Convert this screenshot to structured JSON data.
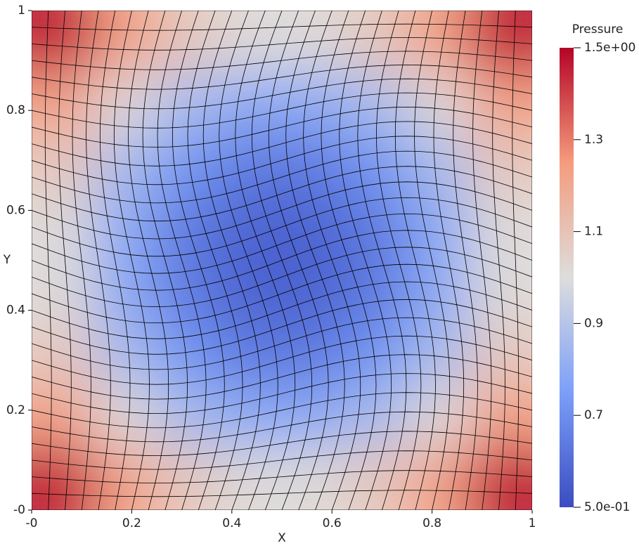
{
  "chart_data": {
    "type": "heatmap",
    "x_label": "X",
    "y_label": "Y",
    "colorbar_title": "Pressure",
    "xlim": [
      0,
      1
    ],
    "ylim": [
      0,
      1
    ],
    "xticks": [
      {
        "value": 0,
        "label": "-0"
      },
      0.2,
      0.4,
      0.6,
      0.8,
      1
    ],
    "yticks": [
      {
        "value": 0,
        "label": "-0"
      },
      0.2,
      0.4,
      0.6,
      0.8,
      1
    ],
    "zlim": [
      0.5,
      1.5
    ],
    "zticks": [
      {
        "value": 1.5,
        "label": "1.5e+00"
      },
      1.3,
      1.1,
      0.9,
      0.7,
      {
        "value": 0.5,
        "label": "5.0e-01"
      }
    ],
    "colorscale": [
      "#3b4cc0",
      "#7b9ff9",
      "#dddddd",
      "#f59c7d",
      "#b40426"
    ],
    "x": [
      0.0625,
      0.1875,
      0.3125,
      0.4375,
      0.5625,
      0.6875,
      0.8125,
      0.9375
    ],
    "y": [
      0.9375,
      0.8125,
      0.6875,
      0.5625,
      0.4375,
      0.3125,
      0.1875,
      0.0625
    ],
    "z": [
      [
        1.45,
        1.23,
        1.08,
        1.01,
        1.01,
        1.08,
        1.23,
        1.45
      ],
      [
        1.23,
        1.01,
        0.86,
        0.79,
        0.79,
        0.86,
        1.01,
        1.23
      ],
      [
        1.08,
        0.86,
        0.72,
        0.64,
        0.64,
        0.72,
        0.86,
        1.08
      ],
      [
        1.01,
        0.79,
        0.64,
        0.57,
        0.57,
        0.64,
        0.79,
        1.01
      ],
      [
        1.01,
        0.79,
        0.64,
        0.57,
        0.57,
        0.64,
        0.79,
        1.01
      ],
      [
        1.08,
        0.86,
        0.72,
        0.64,
        0.64,
        0.72,
        0.86,
        1.08
      ],
      [
        1.23,
        1.01,
        0.86,
        0.79,
        0.79,
        0.86,
        1.01,
        1.23
      ],
      [
        1.45,
        1.23,
        1.08,
        1.01,
        1.01,
        1.08,
        1.23,
        1.45
      ]
    ]
  }
}
